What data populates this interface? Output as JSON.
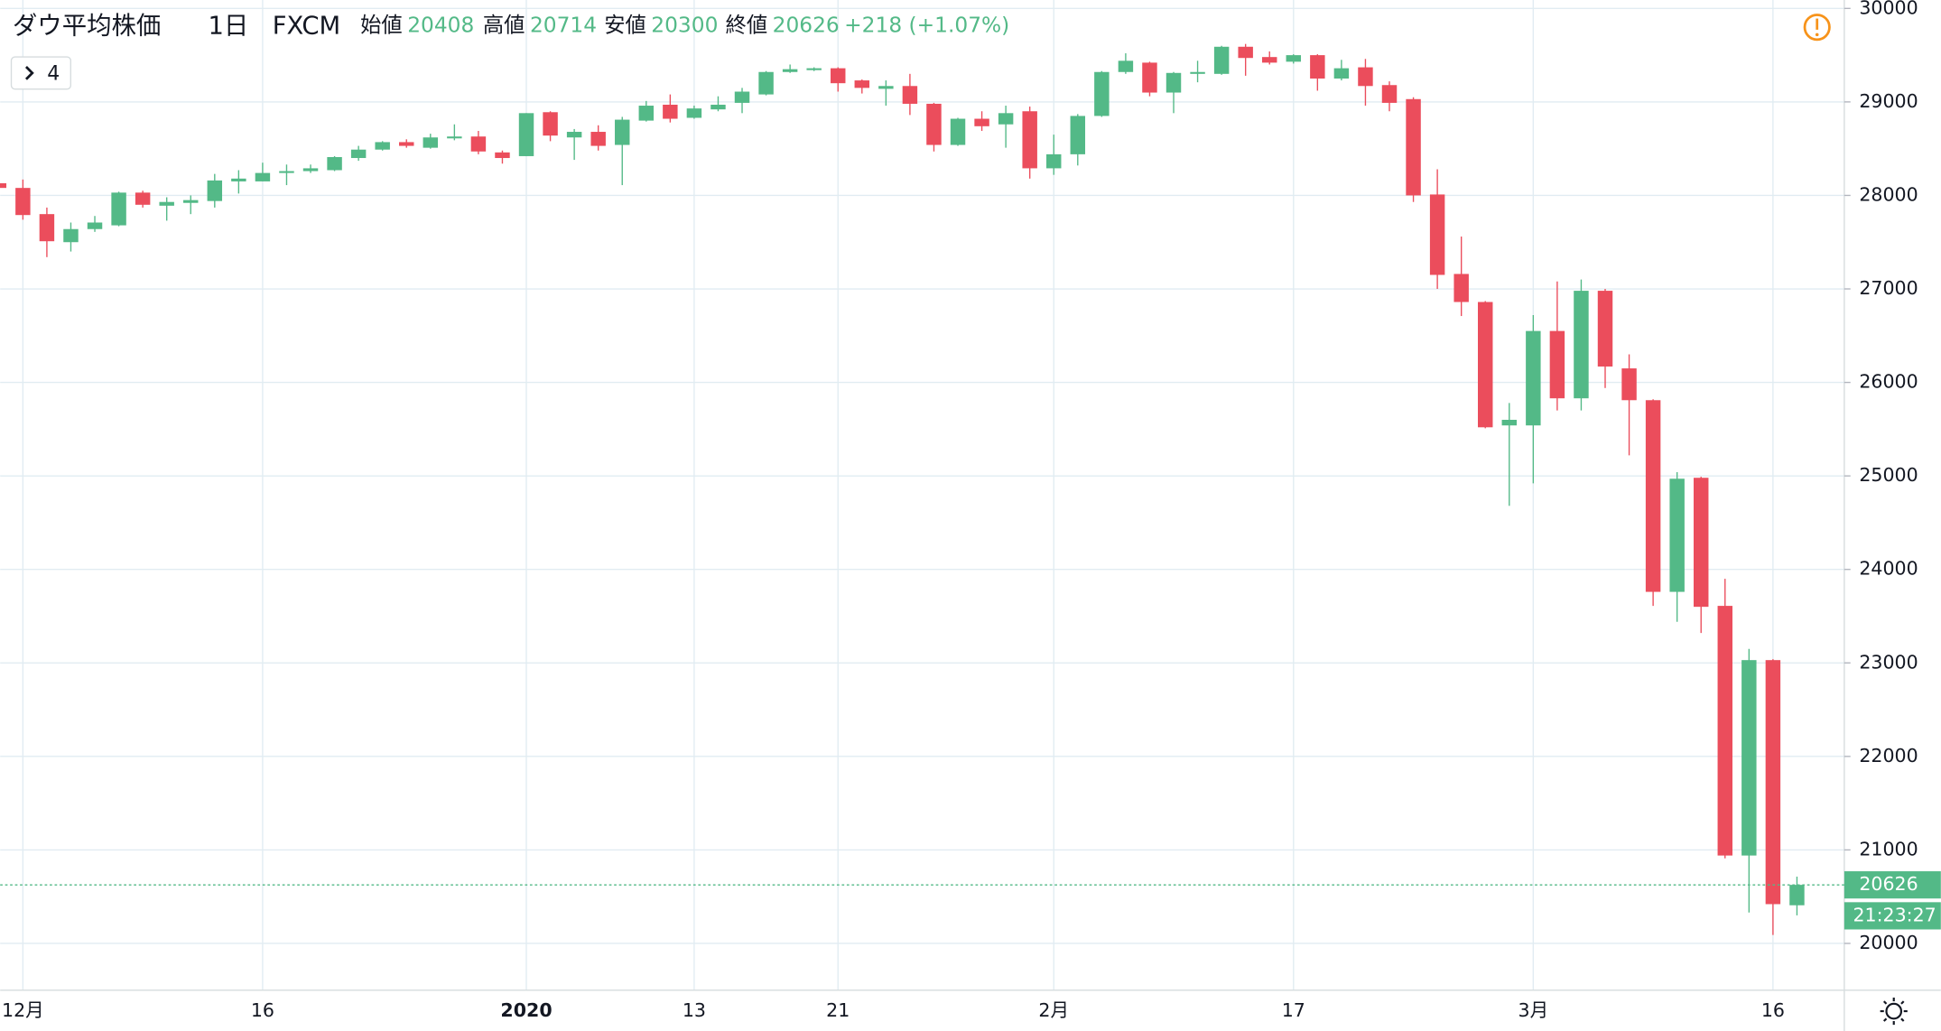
{
  "chart_data": {
    "type": "candlestick",
    "title": "ダウ平均株価",
    "interval": "1日",
    "source": "FXCM",
    "ohlc_labels": {
      "open": "始値",
      "high": "高値",
      "low": "安値",
      "close": "終値"
    },
    "change_label": "+218 (+1.07%)",
    "countdown": "21:23:27",
    "indicator_count": "4",
    "up_color": "#53b987",
    "down_color": "#eb4d5c",
    "categories": [
      null,
      "12月",
      null,
      null,
      null,
      null,
      null,
      null,
      null,
      null,
      null,
      "16",
      null,
      null,
      null,
      null,
      null,
      null,
      null,
      null,
      null,
      null,
      "2020",
      null,
      null,
      null,
      null,
      null,
      null,
      "13",
      null,
      null,
      null,
      null,
      null,
      "21",
      null,
      null,
      null,
      null,
      null,
      null,
      null,
      null,
      "2月",
      null,
      null,
      null,
      null,
      null,
      null,
      null,
      null,
      null,
      "17",
      null,
      null,
      null,
      null,
      null,
      null,
      null,
      null,
      null,
      "3月",
      null,
      null,
      null,
      null,
      null,
      null,
      null,
      null,
      null,
      "16",
      null
    ],
    "open": [
      28130,
      28080,
      27800,
      27500,
      27640,
      27680,
      28030,
      27890,
      27920,
      27940,
      28150,
      28150,
      28240,
      28260,
      28270,
      28400,
      28490,
      28570,
      28510,
      28610,
      28630,
      28460,
      28420,
      28890,
      28620,
      28680,
      28540,
      28800,
      28970,
      28830,
      28920,
      28990,
      29080,
      29320,
      29340,
      29360,
      29230,
      29140,
      29170,
      28980,
      28540,
      28820,
      28760,
      28900,
      28290,
      28440,
      28850,
      29320,
      29420,
      29100,
      29300,
      29300,
      29590,
      29480,
      29430,
      29500,
      29250,
      29370,
      29180,
      29030,
      28010,
      27160,
      26860,
      25540,
      25540,
      26550,
      25830,
      26980,
      26150,
      25810,
      23760,
      24980,
      23610,
      20940,
      23030,
      20408
    ],
    "high": [
      28150,
      28170,
      27870,
      27710,
      27780,
      28040,
      28050,
      27980,
      28000,
      28230,
      28270,
      28350,
      28330,
      28330,
      28420,
      28530,
      28580,
      28600,
      28660,
      28760,
      28690,
      28480,
      28880,
      28900,
      28710,
      28750,
      28840,
      29010,
      29080,
      28960,
      29060,
      29150,
      29330,
      29400,
      29370,
      29370,
      29240,
      29230,
      29300,
      28990,
      28830,
      28900,
      28960,
      28950,
      28650,
      28870,
      29330,
      29520,
      29430,
      29320,
      29440,
      29600,
      29620,
      29540,
      29510,
      29510,
      29450,
      29460,
      29220,
      29050,
      28280,
      27560,
      26870,
      25780,
      26720,
      27080,
      27100,
      27000,
      26300,
      25820,
      25040,
      24990,
      23900,
      23150,
      23040,
      20714
    ],
    "low": [
      28050,
      27740,
      27340,
      27400,
      27610,
      27670,
      27870,
      27730,
      27800,
      27870,
      28020,
      28150,
      28110,
      28240,
      28260,
      28370,
      28480,
      28510,
      28500,
      28590,
      28440,
      28340,
      28420,
      28580,
      28380,
      28480,
      28110,
      28790,
      28780,
      28820,
      28900,
      28880,
      29070,
      29310,
      29330,
      29110,
      29090,
      28960,
      28860,
      28470,
      28530,
      28690,
      28510,
      28180,
      28220,
      28320,
      28840,
      29300,
      29060,
      28880,
      29210,
      29290,
      29280,
      29400,
      29410,
      29120,
      29230,
      28960,
      28900,
      27930,
      27000,
      26710,
      25510,
      24680,
      24920,
      25700,
      25700,
      25940,
      25220,
      23610,
      23440,
      23320,
      20910,
      20330,
      20090,
      20300
    ],
    "close": [
      28080,
      27790,
      27510,
      27640,
      27710,
      28030,
      27900,
      27930,
      27950,
      28160,
      28180,
      28240,
      28260,
      28290,
      28410,
      28490,
      28570,
      28530,
      28620,
      28630,
      28470,
      28400,
      28880,
      28640,
      28680,
      28530,
      28810,
      28960,
      28820,
      28930,
      28970,
      29110,
      29320,
      29350,
      29360,
      29200,
      29150,
      29170,
      28980,
      28540,
      28820,
      28740,
      28880,
      28290,
      28440,
      28850,
      29320,
      29440,
      29100,
      29310,
      29320,
      29590,
      29470,
      29420,
      29500,
      29250,
      29360,
      29170,
      28990,
      28000,
      27150,
      26860,
      25520,
      25600,
      26550,
      25830,
      26980,
      26170,
      25810,
      23760,
      24970,
      23600,
      20940,
      23030,
      20420,
      20626
    ],
    "ylim": [
      19500,
      30090
    ],
    "yticks": [
      20000,
      21000,
      22000,
      23000,
      24000,
      25000,
      26000,
      27000,
      28000,
      29000,
      30000
    ],
    "grid": true
  }
}
